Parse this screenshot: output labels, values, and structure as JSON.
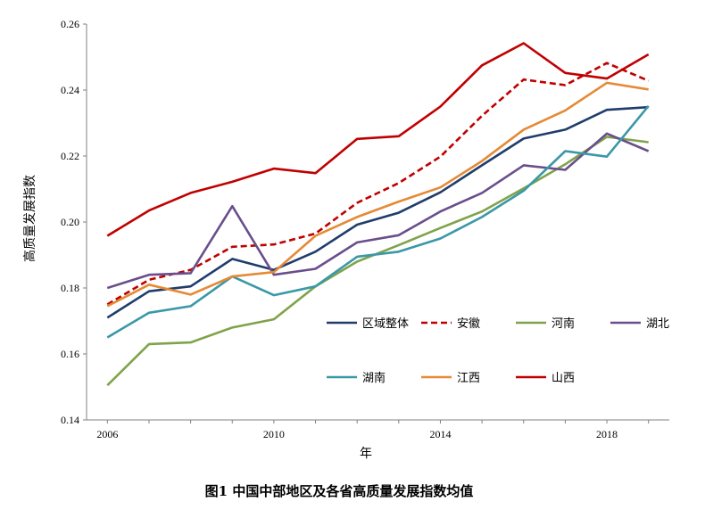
{
  "chart_data": {
    "type": "line",
    "caption": "图1  中国中部地区及各省高质量发展指数均值",
    "xlabel": "年",
    "ylabel": "高质量发展指数",
    "x": [
      2006,
      2007,
      2008,
      2009,
      2010,
      2011,
      2012,
      2013,
      2014,
      2015,
      2016,
      2017,
      2018,
      2019
    ],
    "xlim": [
      2005.5,
      2019.5
    ],
    "x_ticks": [
      2006,
      2010,
      2014,
      2018
    ],
    "ylim": [
      0.14,
      0.26
    ],
    "y_ticks": [
      "0.14",
      "0.16",
      "0.18",
      "0.20",
      "0.22",
      "0.24",
      "0.26"
    ],
    "grid": false,
    "legend": "inside-lower-right",
    "series": [
      {
        "name": "区域整体",
        "color": "#1f3d6b",
        "dash": false,
        "values": [
          0.171,
          0.179,
          0.1805,
          0.1888,
          0.1855,
          0.191,
          0.1992,
          0.2028,
          0.209,
          0.2172,
          0.2253,
          0.228,
          0.234,
          0.2348
        ]
      },
      {
        "name": "安徽",
        "color": "#c00000",
        "dash": true,
        "values": [
          0.175,
          0.1825,
          0.1855,
          0.1925,
          0.1932,
          0.1965,
          0.2058,
          0.2118,
          0.2198,
          0.2322,
          0.2432,
          0.2415,
          0.2482,
          0.2428
        ]
      },
      {
        "name": "河南",
        "color": "#7fa34a",
        "dash": false,
        "values": [
          0.1505,
          0.163,
          0.1635,
          0.168,
          0.1705,
          0.1805,
          0.188,
          0.193,
          0.1982,
          0.2032,
          0.2102,
          0.2175,
          0.2258,
          0.2242
        ]
      },
      {
        "name": "湖北",
        "color": "#6a4e8c",
        "dash": false,
        "values": [
          0.18,
          0.184,
          0.1845,
          0.2048,
          0.184,
          0.1858,
          0.1938,
          0.196,
          0.2032,
          0.2088,
          0.2172,
          0.2158,
          0.2268,
          0.2215
        ]
      },
      {
        "name": "湖南",
        "color": "#3a98a8",
        "dash": false,
        "values": [
          0.165,
          0.1725,
          0.1745,
          0.1835,
          0.1778,
          0.1805,
          0.1895,
          0.191,
          0.195,
          0.2015,
          0.2095,
          0.2215,
          0.2198,
          0.2352
        ]
      },
      {
        "name": "江西",
        "color": "#e58a35",
        "dash": false,
        "values": [
          0.1745,
          0.181,
          0.178,
          0.1835,
          0.1848,
          0.1958,
          0.2015,
          0.2062,
          0.2105,
          0.2185,
          0.228,
          0.2338,
          0.2422,
          0.2402
        ]
      },
      {
        "name": "山西",
        "color": "#c00000",
        "dash": false,
        "values": [
          0.1958,
          0.2035,
          0.2088,
          0.2122,
          0.2162,
          0.2148,
          0.2252,
          0.226,
          0.235,
          0.2475,
          0.2542,
          0.2452,
          0.2435,
          0.2508
        ]
      }
    ]
  }
}
